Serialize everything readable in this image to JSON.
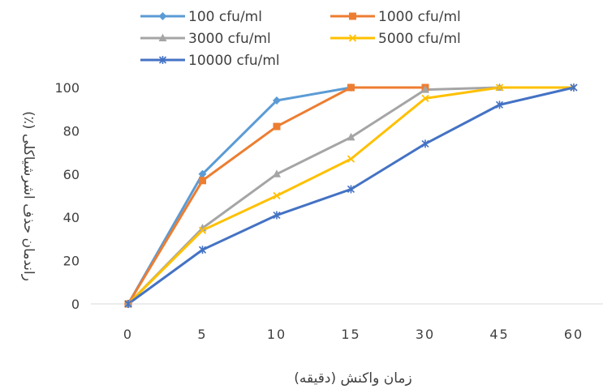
{
  "chart_data": {
    "type": "line",
    "title": "",
    "xlabel": "زمان واکنش (دقیقه)",
    "ylabel": "راندمان حذف اشرشیاکلی (٪)",
    "categories": [
      "0",
      "5",
      "10",
      "15",
      "30",
      "45",
      "60"
    ],
    "ylim": [
      0,
      100
    ],
    "yticks": [
      0,
      20,
      40,
      60,
      80,
      100
    ],
    "grid": false,
    "legend_position": "top",
    "series": [
      {
        "name": "100 cfu/ml",
        "color": "#5B9BD5",
        "marker": "diamond",
        "values": [
          0,
          60,
          94,
          100,
          null,
          null,
          null
        ]
      },
      {
        "name": "1000 cfu/ml",
        "color": "#ED7D31",
        "marker": "square",
        "values": [
          0,
          57,
          82,
          100,
          100,
          null,
          null
        ]
      },
      {
        "name": "3000 cfu/ml",
        "color": "#A5A5A5",
        "marker": "triangle",
        "values": [
          0,
          35,
          60,
          77,
          99,
          100,
          null
        ]
      },
      {
        "name": "5000 cfu/ml",
        "color": "#FFC000",
        "marker": "x",
        "values": [
          0,
          34,
          50,
          67,
          95,
          100,
          100
        ]
      },
      {
        "name": "10000 cfu/ml",
        "color": "#4472C4",
        "marker": "star",
        "values": [
          0,
          25,
          41,
          53,
          74,
          92,
          100
        ]
      }
    ]
  }
}
